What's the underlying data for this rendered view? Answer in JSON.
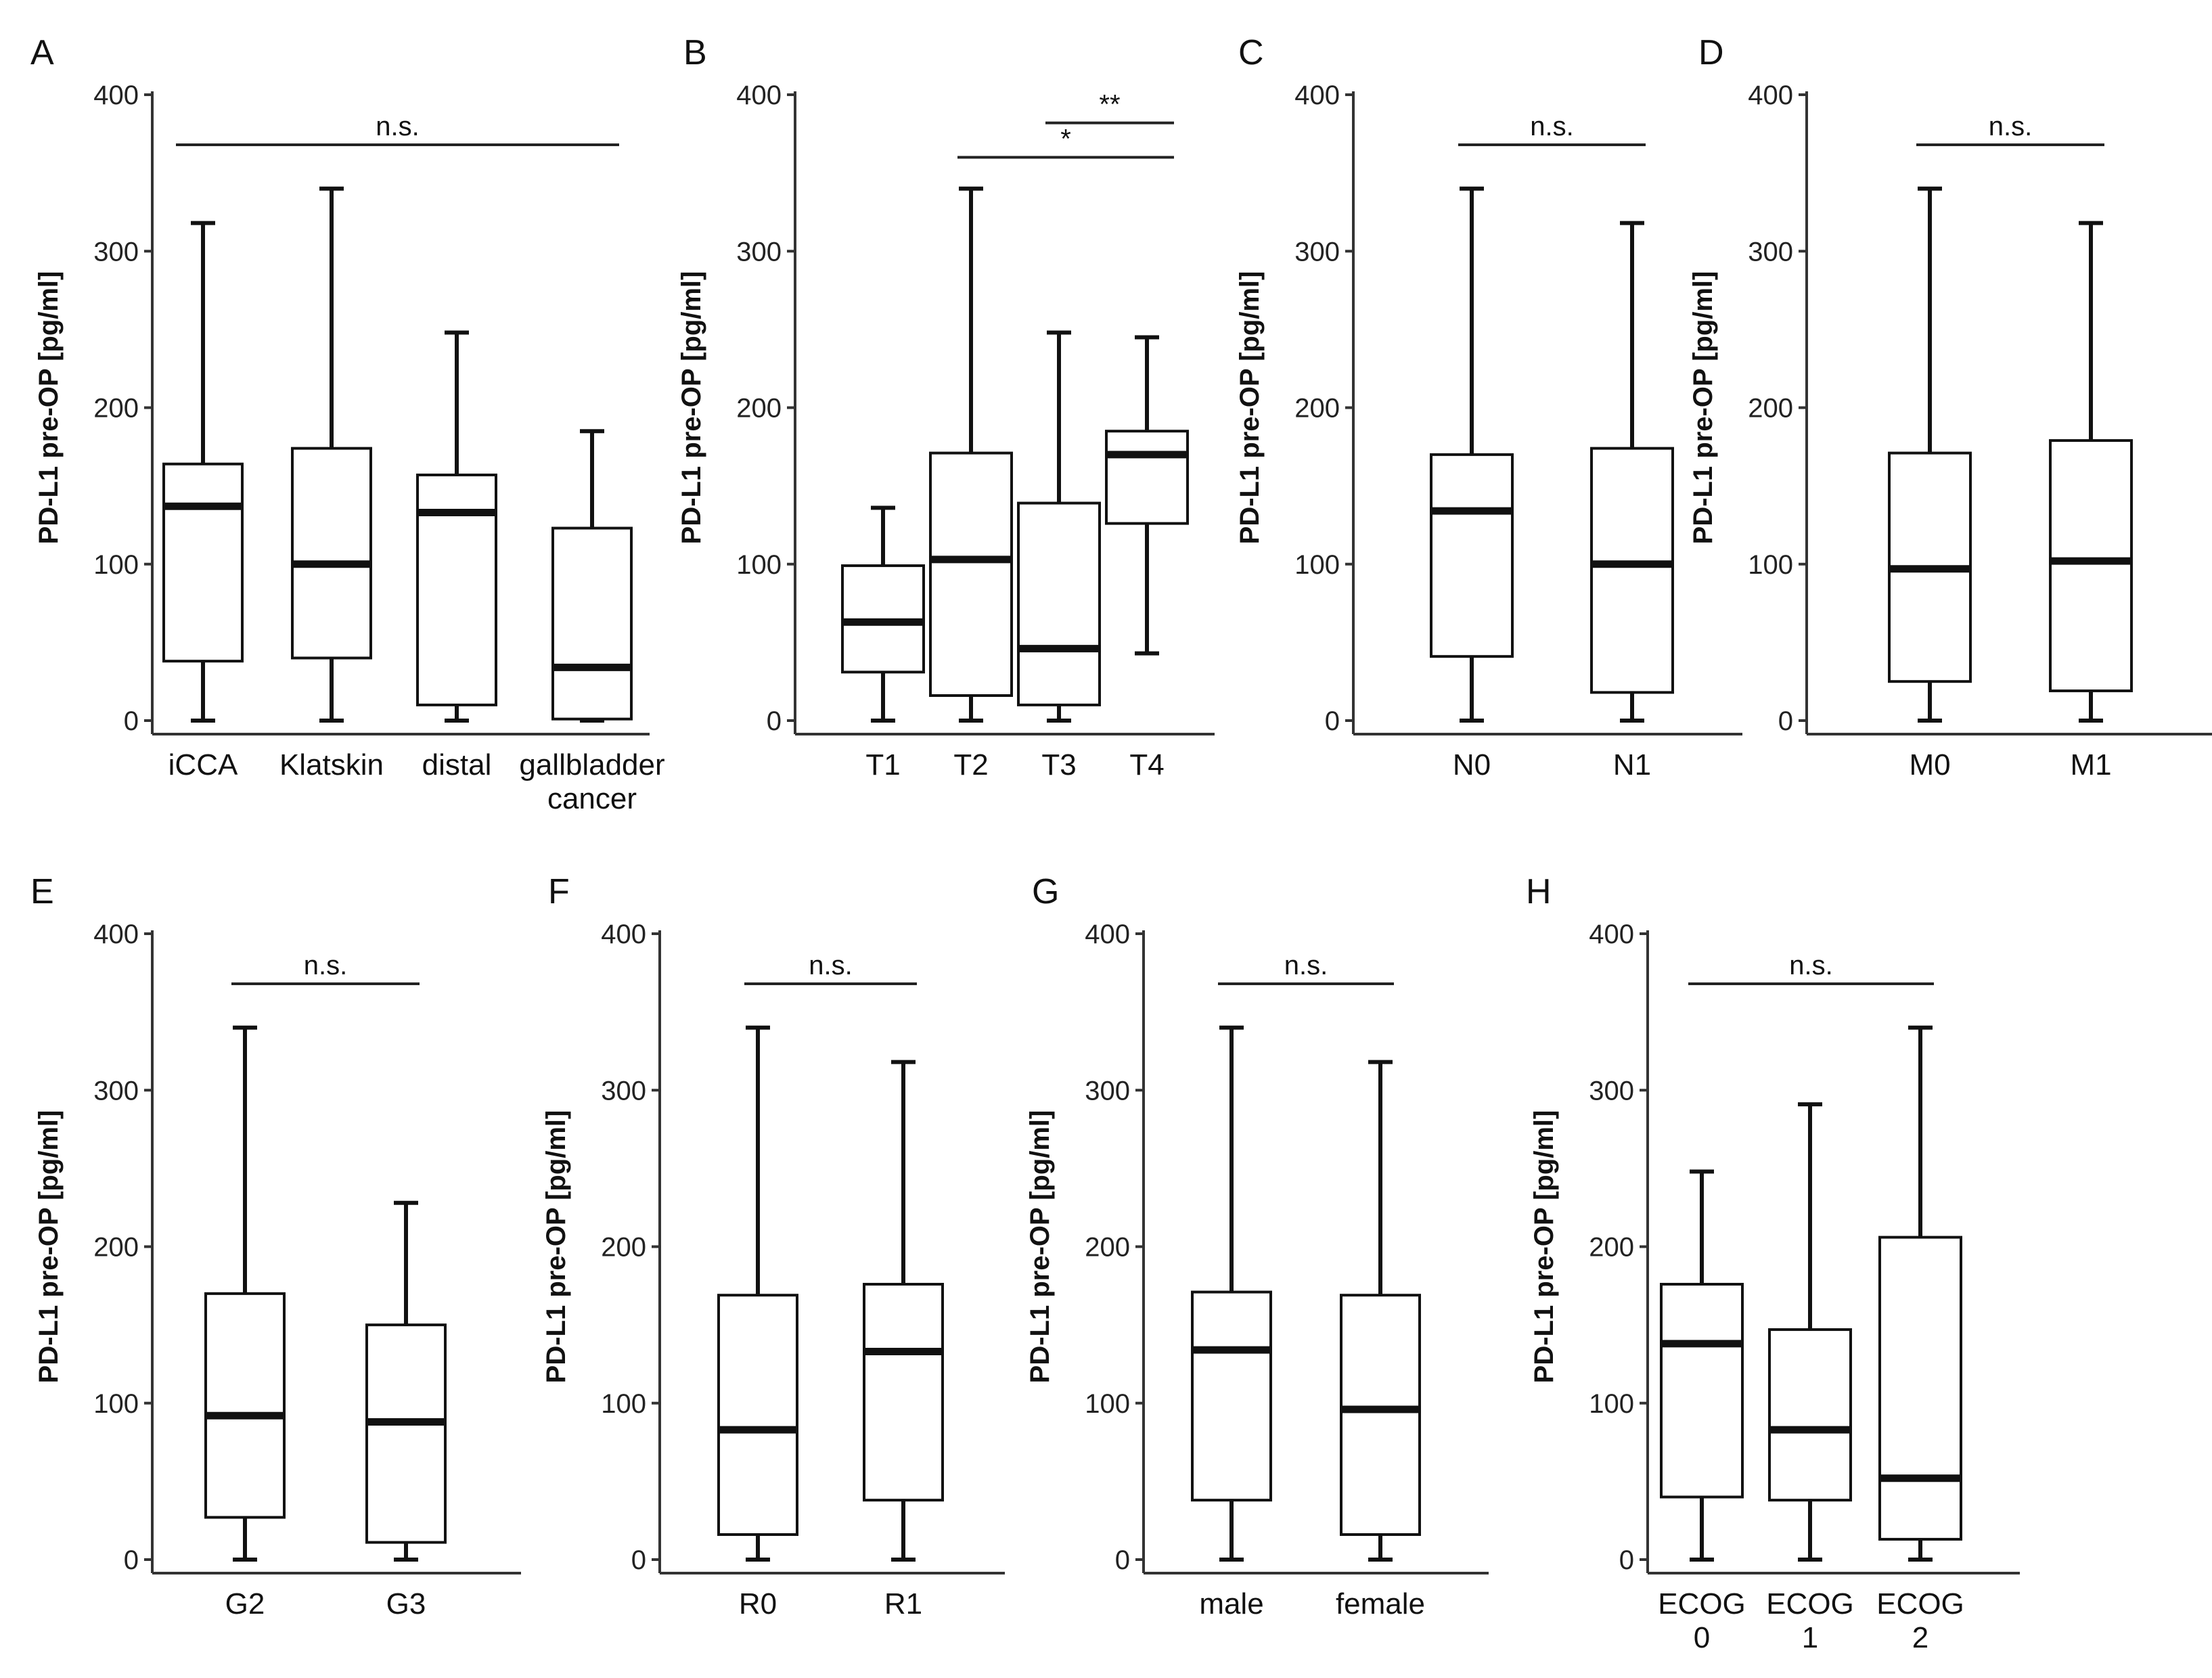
{
  "chart_data": [
    {
      "panel": "A",
      "type": "box",
      "ylabel": "PD-L1 pre-OP [pg/ml]",
      "ylim": [
        0,
        400
      ],
      "yticks": [
        "0",
        "100",
        "200",
        "300",
        "400"
      ],
      "categories": [
        [
          "iCCA"
        ],
        [
          "Klatskin"
        ],
        [
          "distal"
        ],
        [
          "gallbladder",
          "cancer"
        ]
      ],
      "boxes": [
        {
          "min": 0,
          "q1": 38,
          "median": 137,
          "q3": 164,
          "max": 318
        },
        {
          "min": 0,
          "q1": 40,
          "median": 100,
          "q3": 174,
          "max": 340
        },
        {
          "min": 0,
          "q1": 10,
          "median": 133,
          "q3": 157,
          "max": 248
        },
        {
          "min": 0,
          "q1": 1,
          "median": 34,
          "q3": 123,
          "max": 185
        }
      ],
      "comparisons": [
        {
          "from": 0,
          "to": 3,
          "label": "n.s."
        }
      ]
    },
    {
      "panel": "B",
      "type": "box",
      "ylabel": "PD-L1 pre-OP [pg/ml]",
      "ylim": [
        0,
        400
      ],
      "yticks": [
        "0",
        "100",
        "200",
        "300",
        "400"
      ],
      "categories": [
        [
          "T1"
        ],
        [
          "T2"
        ],
        [
          "T3"
        ],
        [
          "T4"
        ]
      ],
      "boxes": [
        {
          "min": 0,
          "q1": 31,
          "median": 63,
          "q3": 99,
          "max": 136
        },
        {
          "min": 0,
          "q1": 16,
          "median": 103,
          "q3": 171,
          "max": 340
        },
        {
          "min": 0,
          "q1": 10,
          "median": 46,
          "q3": 139,
          "max": 248
        },
        {
          "min": 43,
          "q1": 126,
          "median": 170,
          "q3": 185,
          "max": 245
        }
      ],
      "comparisons": [
        {
          "from": 1,
          "to": 3,
          "label": "*"
        },
        {
          "from": 2,
          "to": 3,
          "label": "**"
        }
      ]
    },
    {
      "panel": "C",
      "type": "box",
      "ylabel": "PD-L1 pre-OP [pg/ml]",
      "ylim": [
        0,
        400
      ],
      "yticks": [
        "0",
        "100",
        "200",
        "300",
        "400"
      ],
      "categories": [
        [
          "N0"
        ],
        [
          "N1"
        ]
      ],
      "boxes": [
        {
          "min": 0,
          "q1": 41,
          "median": 134,
          "q3": 170,
          "max": 340
        },
        {
          "min": 0,
          "q1": 18,
          "median": 100,
          "q3": 174,
          "max": 318
        }
      ],
      "comparisons": [
        {
          "from": 0,
          "to": 1,
          "label": "n.s."
        }
      ]
    },
    {
      "panel": "D",
      "type": "box",
      "ylabel": "PD-L1 pre-OP [pg/ml]",
      "ylim": [
        0,
        400
      ],
      "yticks": [
        "0",
        "100",
        "200",
        "300",
        "400"
      ],
      "categories": [
        [
          "M0"
        ],
        [
          "M1"
        ]
      ],
      "boxes": [
        {
          "min": 0,
          "q1": 25,
          "median": 97,
          "q3": 171,
          "max": 340
        },
        {
          "min": 0,
          "q1": 19,
          "median": 102,
          "q3": 179,
          "max": 318
        }
      ],
      "comparisons": [
        {
          "from": 0,
          "to": 1,
          "label": "n.s."
        }
      ]
    },
    {
      "panel": "E",
      "type": "box",
      "ylabel": "PD-L1 pre-OP [pg/ml]",
      "ylim": [
        0,
        400
      ],
      "yticks": [
        "0",
        "100",
        "200",
        "300",
        "400"
      ],
      "categories": [
        [
          "G2"
        ],
        [
          "G3"
        ]
      ],
      "boxes": [
        {
          "min": 0,
          "q1": 27,
          "median": 92,
          "q3": 170,
          "max": 340
        },
        {
          "min": 0,
          "q1": 11,
          "median": 88,
          "q3": 150,
          "max": 228
        }
      ],
      "comparisons": [
        {
          "from": 0,
          "to": 1,
          "label": "n.s."
        }
      ]
    },
    {
      "panel": "F",
      "type": "box",
      "ylabel": "PD-L1 pre-OP [pg/ml]",
      "ylim": [
        0,
        400
      ],
      "yticks": [
        "0",
        "100",
        "200",
        "300",
        "400"
      ],
      "categories": [
        [
          "R0"
        ],
        [
          "R1"
        ]
      ],
      "boxes": [
        {
          "min": 0,
          "q1": 16,
          "median": 83,
          "q3": 169,
          "max": 340
        },
        {
          "min": 0,
          "q1": 38,
          "median": 133,
          "q3": 176,
          "max": 318
        }
      ],
      "comparisons": [
        {
          "from": 0,
          "to": 1,
          "label": "n.s."
        }
      ]
    },
    {
      "panel": "G",
      "type": "box",
      "ylabel": "PD-L1 pre-OP [pg/ml]",
      "ylim": [
        0,
        400
      ],
      "yticks": [
        "0",
        "100",
        "200",
        "300",
        "400"
      ],
      "categories": [
        [
          "male"
        ],
        [
          "female"
        ]
      ],
      "boxes": [
        {
          "min": 0,
          "q1": 38,
          "median": 134,
          "q3": 171,
          "max": 340
        },
        {
          "min": 0,
          "q1": 16,
          "median": 96,
          "q3": 169,
          "max": 318
        }
      ],
      "comparisons": [
        {
          "from": 0,
          "to": 1,
          "label": "n.s."
        }
      ]
    },
    {
      "panel": "H",
      "type": "box",
      "ylabel": "PD-L1 pre-OP [pg/ml]",
      "ylim": [
        0,
        400
      ],
      "yticks": [
        "0",
        "100",
        "200",
        "300",
        "400"
      ],
      "categories": [
        [
          "ECOG",
          "0"
        ],
        [
          "ECOG",
          "1"
        ],
        [
          "ECOG",
          "2"
        ]
      ],
      "boxes": [
        {
          "min": 0,
          "q1": 40,
          "median": 138,
          "q3": 176,
          "max": 248
        },
        {
          "min": 0,
          "q1": 38,
          "median": 83,
          "q3": 147,
          "max": 291
        },
        {
          "min": 0,
          "q1": 13,
          "median": 52,
          "q3": 206,
          "max": 340
        }
      ],
      "comparisons": [
        {
          "from": 0,
          "to": 2,
          "label": "n.s."
        }
      ]
    }
  ]
}
